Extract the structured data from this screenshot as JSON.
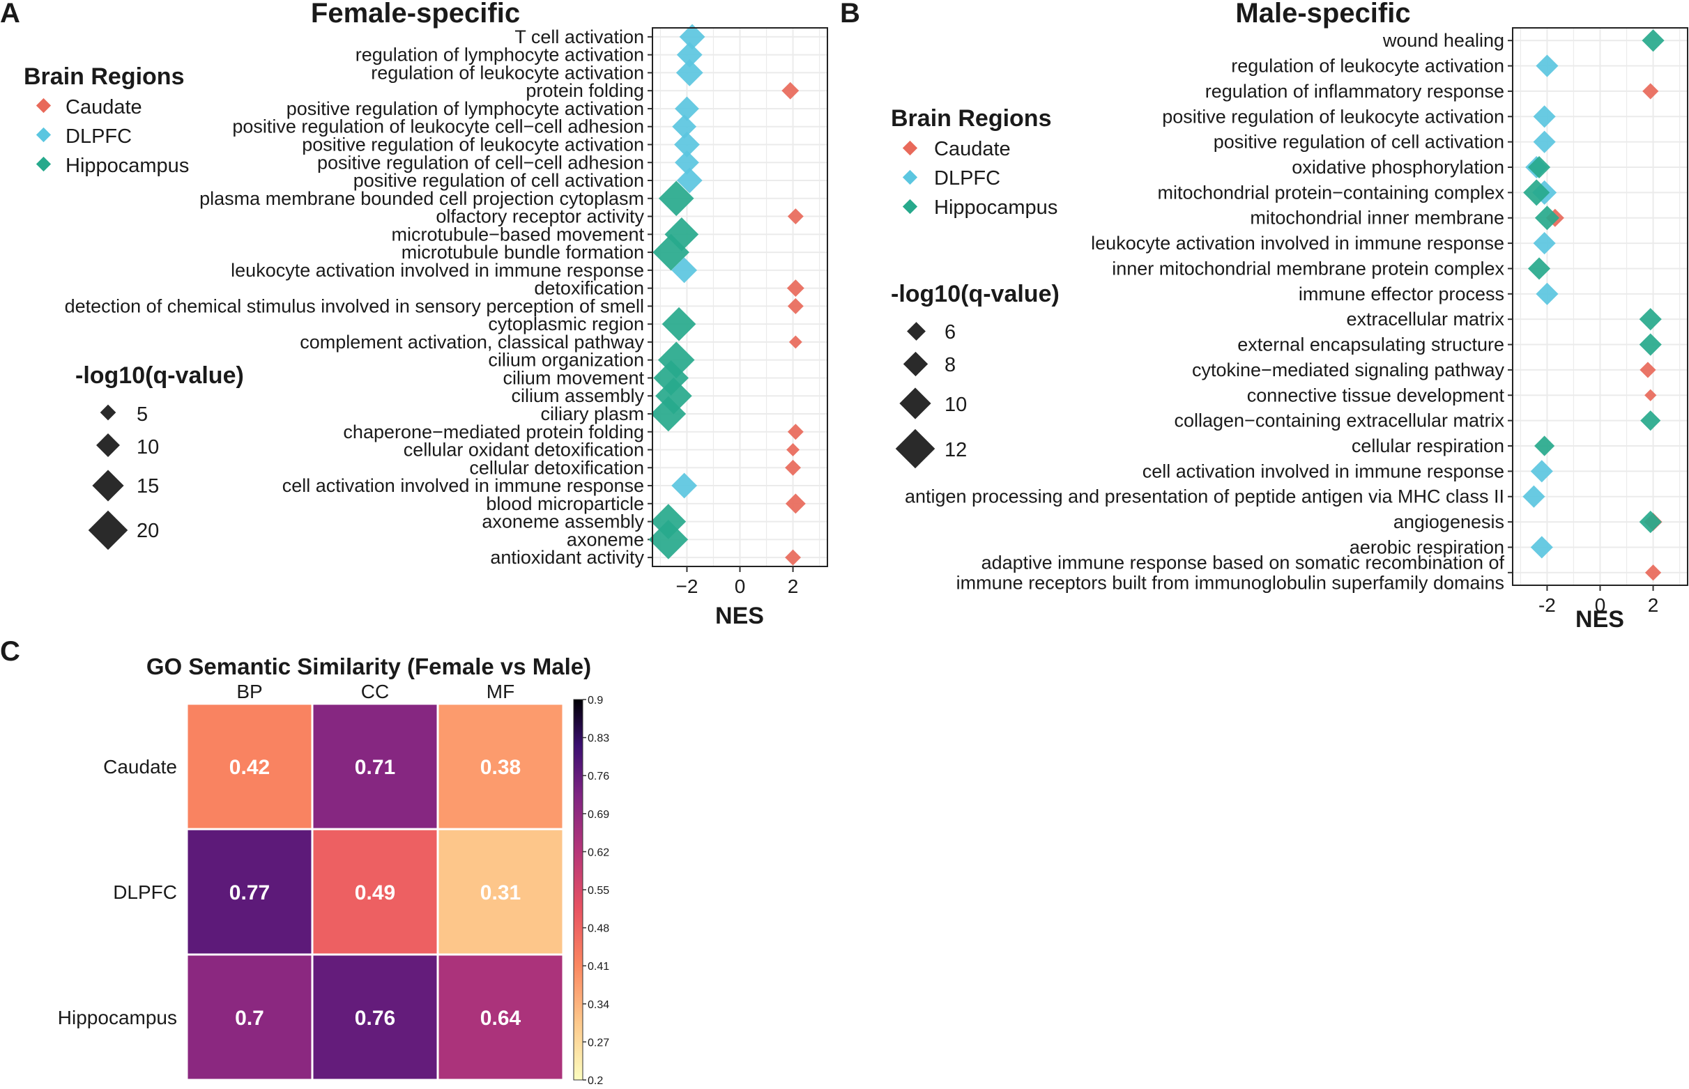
{
  "colors": {
    "Caudate": "#E8695A",
    "DLPFC": "#5BC6E0",
    "Hippocampus": "#27A98C",
    "panel_border": "#222222",
    "grid": "#EBEBEB",
    "text": "#1a1a1a"
  },
  "chart_data": [
    {
      "panel_label": "A",
      "type": "scatter",
      "title": "Female-specific",
      "xlabel": "NES",
      "ylabel": "",
      "xlim": [
        -3.3,
        3.3
      ],
      "xticks": [
        -2,
        0,
        2
      ],
      "xtick_labels": [
        "−2",
        "0",
        "2"
      ],
      "grid": true,
      "legend": {
        "placement": "left",
        "color_title": "Brain Regions",
        "color_entries": [
          "Caudate",
          "DLPFC",
          "Hippocampus"
        ],
        "size_title": "-log10(q-value)",
        "size_entries": [
          5,
          10,
          15,
          20
        ]
      },
      "categories": [
        "T cell activation",
        "regulation of lymphocyte activation",
        "regulation of leukocyte activation",
        "protein folding",
        "positive regulation of lymphocyte activation",
        "positive regulation of leukocyte cell−cell adhesion",
        "positive regulation of leukocyte activation",
        "positive regulation of cell−cell adhesion",
        "positive regulation of cell activation",
        "plasma membrane bounded cell projection cytoplasm",
        "olfactory receptor activity",
        "microtubule−based movement",
        "microtubule bundle formation",
        "leukocyte activation involved in immune response",
        "detoxification",
        "detection of chemical stimulus involved in sensory perception of smell",
        "cytoplasmic region",
        "complement activation, classical pathway",
        "cilium organization",
        "cilium movement",
        "cilium assembly",
        "ciliary plasm",
        "chaperone−mediated protein folding",
        "cellular oxidant detoxification",
        "cellular detoxification",
        "cell activation involved in immune response",
        "blood microparticle",
        "axoneme assembly",
        "axoneme",
        "antioxidant activity"
      ],
      "points": [
        {
          "term": "T cell activation",
          "region": "DLPFC",
          "nes": -1.8,
          "neglog10q": 10
        },
        {
          "term": "regulation of lymphocyte activation",
          "region": "DLPFC",
          "nes": -1.9,
          "neglog10q": 10
        },
        {
          "term": "regulation of leukocyte activation",
          "region": "DLPFC",
          "nes": -1.9,
          "neglog10q": 11
        },
        {
          "term": "protein folding",
          "region": "Caudate",
          "nes": 1.9,
          "neglog10q": 4
        },
        {
          "term": "positive regulation of lymphocyte activation",
          "region": "DLPFC",
          "nes": -2.0,
          "neglog10q": 9
        },
        {
          "term": "positive regulation of leukocyte cell−cell adhesion",
          "region": "DLPFC",
          "nes": -2.1,
          "neglog10q": 9
        },
        {
          "term": "positive regulation of leukocyte activation",
          "region": "DLPFC",
          "nes": -2.0,
          "neglog10q": 10
        },
        {
          "term": "positive regulation of cell−cell adhesion",
          "region": "DLPFC",
          "nes": -2.0,
          "neglog10q": 9
        },
        {
          "term": "positive regulation of cell activation",
          "region": "DLPFC",
          "nes": -1.9,
          "neglog10q": 10
        },
        {
          "term": "plasma membrane bounded cell projection cytoplasm",
          "region": "Hippocampus",
          "nes": -2.4,
          "neglog10q": 17
        },
        {
          "term": "olfactory receptor activity",
          "region": "Caudate",
          "nes": 2.1,
          "neglog10q": 3
        },
        {
          "term": "microtubule−based movement",
          "region": "Hippocampus",
          "nes": -2.2,
          "neglog10q": 16
        },
        {
          "term": "microtubule bundle formation",
          "region": "Hippocampus",
          "nes": -2.6,
          "neglog10q": 18
        },
        {
          "term": "leukocyte activation involved in immune response",
          "region": "DLPFC",
          "nes": -2.1,
          "neglog10q": 10
        },
        {
          "term": "detoxification",
          "region": "Caudate",
          "nes": 2.1,
          "neglog10q": 4
        },
        {
          "term": "detection of chemical stimulus involved in sensory perception of smell",
          "region": "Caudate",
          "nes": 2.1,
          "neglog10q": 3
        },
        {
          "term": "cytoplasmic region",
          "region": "Hippocampus",
          "nes": -2.3,
          "neglog10q": 16
        },
        {
          "term": "complement activation, classical pathway",
          "region": "Caudate",
          "nes": 2.1,
          "neglog10q": 1
        },
        {
          "term": "cilium organization",
          "region": "Hippocampus",
          "nes": -2.4,
          "neglog10q": 18
        },
        {
          "term": "cilium movement",
          "region": "Hippocampus",
          "nes": -2.6,
          "neglog10q": 17
        },
        {
          "term": "cilium assembly",
          "region": "Hippocampus",
          "nes": -2.5,
          "neglog10q": 18
        },
        {
          "term": "ciliary plasm",
          "region": "Hippocampus",
          "nes": -2.7,
          "neglog10q": 17
        },
        {
          "term": "chaperone−mediated protein folding",
          "region": "Caudate",
          "nes": 2.1,
          "neglog10q": 3
        },
        {
          "term": "cellular oxidant detoxification",
          "region": "Caudate",
          "nes": 2.0,
          "neglog10q": 1
        },
        {
          "term": "cellular detoxification",
          "region": "Caudate",
          "nes": 2.0,
          "neglog10q": 3
        },
        {
          "term": "cell activation involved in immune response",
          "region": "DLPFC",
          "nes": -2.1,
          "neglog10q": 10
        },
        {
          "term": "blood microparticle",
          "region": "Caudate",
          "nes": 2.1,
          "neglog10q": 6
        },
        {
          "term": "axoneme assembly",
          "region": "Hippocampus",
          "nes": -2.7,
          "neglog10q": 17
        },
        {
          "term": "axoneme",
          "region": "Hippocampus",
          "nes": -2.7,
          "neglog10q": 20
        },
        {
          "term": "antioxidant activity",
          "region": "Caudate",
          "nes": 2.0,
          "neglog10q": 3
        }
      ]
    },
    {
      "panel_label": "B",
      "type": "scatter",
      "title": "Male-specific",
      "xlabel": "NES",
      "ylabel": "",
      "xlim": [
        -3.3,
        3.3
      ],
      "xticks": [
        -2,
        0,
        2
      ],
      "xtick_labels": [
        "-2",
        "0",
        "2"
      ],
      "grid": true,
      "legend": {
        "placement": "left",
        "color_title": "Brain Regions",
        "color_entries": [
          "Caudate",
          "DLPFC",
          "Hippocampus"
        ],
        "size_title": "-log10(q-value)",
        "size_entries": [
          6,
          8,
          10,
          12
        ]
      },
      "categories": [
        "wound healing",
        "regulation of leukocyte activation",
        "regulation of inflammatory response",
        "positive regulation of leukocyte activation",
        "positive regulation of cell activation",
        "oxidative phosphorylation",
        "mitochondrial protein−containing complex",
        "mitochondrial inner membrane",
        "leukocyte activation involved in immune response",
        "inner mitochondrial membrane protein complex",
        "immune effector process",
        "extracellular matrix",
        "external encapsulating structure",
        "cytokine−mediated signaling pathway",
        "connective tissue development",
        "collagen−containing extracellular matrix",
        "cellular respiration",
        "cell activation involved in immune response",
        "antigen processing and presentation of peptide antigen via MHC class II",
        "angiogenesis",
        "aerobic respiration",
        "adaptive immune response based on somatic recombination of\nimmune receptors built from immunoglobulin superfamily domains"
      ],
      "points": [
        {
          "term": "wound healing",
          "region": "Hippocampus",
          "nes": 2.0,
          "neglog10q": 7
        },
        {
          "term": "regulation of leukocyte activation",
          "region": "DLPFC",
          "nes": -2.0,
          "neglog10q": 7
        },
        {
          "term": "regulation of inflammatory response",
          "region": "Caudate",
          "nes": 1.9,
          "neglog10q": 4
        },
        {
          "term": "positive regulation of leukocyte activation",
          "region": "DLPFC",
          "nes": -2.1,
          "neglog10q": 7
        },
        {
          "term": "positive regulation of cell activation",
          "region": "DLPFC",
          "nes": -2.1,
          "neglog10q": 7
        },
        {
          "term": "oxidative phosphorylation",
          "region": "DLPFC",
          "nes": -2.4,
          "neglog10q": 7
        },
        {
          "term": "oxidative phosphorylation",
          "region": "Hippocampus",
          "nes": -2.3,
          "neglog10q": 7
        },
        {
          "term": "mitochondrial protein−containing complex",
          "region": "DLPFC",
          "nes": -2.1,
          "neglog10q": 8
        },
        {
          "term": "mitochondrial protein−containing complex",
          "region": "Hippocampus",
          "nes": -2.4,
          "neglog10q": 9
        },
        {
          "term": "mitochondrial inner membrane",
          "region": "Caudate",
          "nes": -1.7,
          "neglog10q": 5
        },
        {
          "term": "mitochondrial inner membrane",
          "region": "Hippocampus",
          "nes": -2.0,
          "neglog10q": 8
        },
        {
          "term": "leukocyte activation involved in immune response",
          "region": "DLPFC",
          "nes": -2.1,
          "neglog10q": 7
        },
        {
          "term": "inner mitochondrial membrane protein complex",
          "region": "Hippocampus",
          "nes": -2.3,
          "neglog10q": 7
        },
        {
          "term": "immune effector process",
          "region": "DLPFC",
          "nes": -2.0,
          "neglog10q": 7
        },
        {
          "term": "extracellular matrix",
          "region": "Hippocampus",
          "nes": 1.9,
          "neglog10q": 7
        },
        {
          "term": "external encapsulating structure",
          "region": "Hippocampus",
          "nes": 1.9,
          "neglog10q": 7
        },
        {
          "term": "cytokine−mediated signaling pathway",
          "region": "Caudate",
          "nes": 1.8,
          "neglog10q": 4
        },
        {
          "term": "connective tissue development",
          "region": "Caudate",
          "nes": 1.9,
          "neglog10q": 2
        },
        {
          "term": "collagen−containing extracellular matrix",
          "region": "Hippocampus",
          "nes": 1.9,
          "neglog10q": 6
        },
        {
          "term": "cellular respiration",
          "region": "Hippocampus",
          "nes": -2.1,
          "neglog10q": 6
        },
        {
          "term": "cell activation involved in immune response",
          "region": "DLPFC",
          "nes": -2.2,
          "neglog10q": 7
        },
        {
          "term": "antigen processing and presentation of peptide antigen via MHC class II",
          "region": "DLPFC",
          "nes": -2.5,
          "neglog10q": 7
        },
        {
          "term": "angiogenesis",
          "region": "Caudate",
          "nes": 2.0,
          "neglog10q": 5
        },
        {
          "term": "angiogenesis",
          "region": "Hippocampus",
          "nes": 1.9,
          "neglog10q": 7
        },
        {
          "term": "aerobic respiration",
          "region": "DLPFC",
          "nes": -2.2,
          "neglog10q": 7
        },
        {
          "term": "adaptive immune response based on somatic recombination of\nimmune receptors built from immunoglobulin superfamily domains",
          "region": "Caudate",
          "nes": 2.0,
          "neglog10q": 4
        }
      ]
    },
    {
      "panel_label": "C",
      "type": "heatmap",
      "title": "GO Semantic Similarity (Female vs Male)",
      "xlabel": "",
      "ylabel": "",
      "columns": [
        "BP",
        "CC",
        "MF"
      ],
      "rows": [
        "Caudate",
        "DLPFC",
        "Hippocampus"
      ],
      "values": [
        [
          0.42,
          0.71,
          0.38
        ],
        [
          0.77,
          0.49,
          0.31
        ],
        [
          0.7,
          0.76,
          0.64
        ]
      ],
      "colorbar": {
        "min": 0.2,
        "max": 0.9,
        "tick_values": [
          0.9,
          0.83,
          0.76,
          0.69,
          0.62,
          0.55,
          0.48,
          0.41,
          0.34,
          0.27,
          0.2
        ],
        "tick_labels": [
          "0.9",
          "0.83",
          "0.76",
          "0.69",
          "0.62",
          "0.55",
          "0.48",
          "0.41",
          "0.34",
          "0.27",
          "0.2"
        ],
        "placement": "right"
      }
    }
  ]
}
